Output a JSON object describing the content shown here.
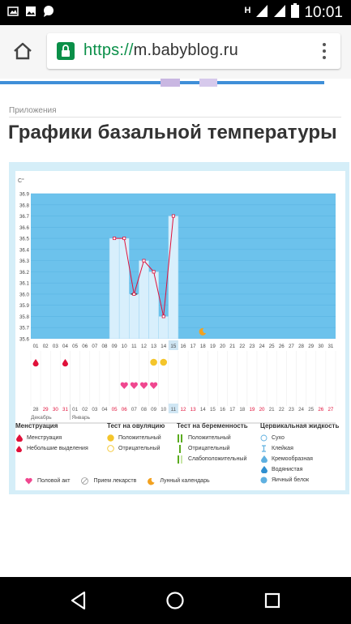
{
  "status_bar": {
    "network_label": "H",
    "time": "10:01",
    "icons": [
      "photo-icon",
      "image-icon",
      "message-icon",
      "signal-icon",
      "signal-icon",
      "battery-icon"
    ]
  },
  "browser": {
    "url_scheme": "https://",
    "url_host": "m.babyblog.ru"
  },
  "page": {
    "breadcrumb": "Приложения",
    "title": "Графики базальной температуры"
  },
  "chart_data": {
    "type": "line",
    "ylabel": "C°",
    "y_ticks": [
      "36.9",
      "36.8",
      "36.7",
      "36.6",
      "36.5",
      "36.4",
      "36.3",
      "36.2",
      "36.1",
      "36.0",
      "35.9",
      "35.8",
      "35.7",
      "35.6"
    ],
    "ylim": [
      35.6,
      36.9
    ],
    "x_days": [
      "01",
      "02",
      "03",
      "04",
      "05",
      "06",
      "07",
      "08",
      "09",
      "10",
      "11",
      "12",
      "13",
      "14",
      "15",
      "16",
      "17",
      "18",
      "19",
      "20",
      "21",
      "22",
      "23",
      "24",
      "25",
      "26",
      "27",
      "28",
      "29",
      "30",
      "31"
    ],
    "highlight_day": "15",
    "series": [
      {
        "x": [
          "09",
          "10",
          "11",
          "12",
          "13",
          "14",
          "15"
        ],
        "values": [
          36.5,
          36.5,
          36.0,
          36.3,
          36.2,
          35.8,
          36.7
        ]
      }
    ],
    "moon_day": "18",
    "menstruation_days": [
      "01",
      "04"
    ],
    "ovulation_positive_days": [
      "13",
      "14"
    ],
    "intercourse_days": [
      "10",
      "11",
      "12",
      "13"
    ],
    "cycle_dates": [
      "28",
      "29",
      "30",
      "31",
      "01",
      "02",
      "03",
      "04",
      "05",
      "06",
      "07",
      "08",
      "09",
      "10",
      "11",
      "12",
      "13",
      "14",
      "15",
      "16",
      "17",
      "18",
      "19",
      "20",
      "21",
      "22",
      "23",
      "24",
      "25",
      "26",
      "27"
    ],
    "cycle_dates_red": [
      "29",
      "30",
      "31",
      "05",
      "06",
      "12",
      "13",
      "19",
      "20",
      "26",
      "27"
    ],
    "month_labels": [
      "Декабрь",
      "Январь"
    ],
    "highlight_cycle_index": 14
  },
  "legend": {
    "col1": {
      "title": "Менструация",
      "items": [
        "Менструация",
        "Небольшие выделения"
      ]
    },
    "col2": {
      "title": "Тест на овуляцию",
      "items": [
        "Положительный",
        "Отрицательный"
      ]
    },
    "col3": {
      "title": "Тест на беременность",
      "items": [
        "Положительный",
        "Отрицательный",
        "Слабоположительный"
      ]
    },
    "col4": {
      "title": "Цервикальная жидкость",
      "items": [
        "Сухо",
        "Клейкая",
        "Кремообразная",
        "Водянистая",
        "Яичный белок"
      ]
    },
    "bottom": [
      "Половой акт",
      "Прием лекарств",
      "Лунный календарь"
    ]
  },
  "colors": {
    "chart_bg": "#6cc2ec",
    "accent_red": "#e0103a",
    "heart": "#f0478f",
    "ovulation": "#f4c52b",
    "url_green": "#0a8f48"
  }
}
